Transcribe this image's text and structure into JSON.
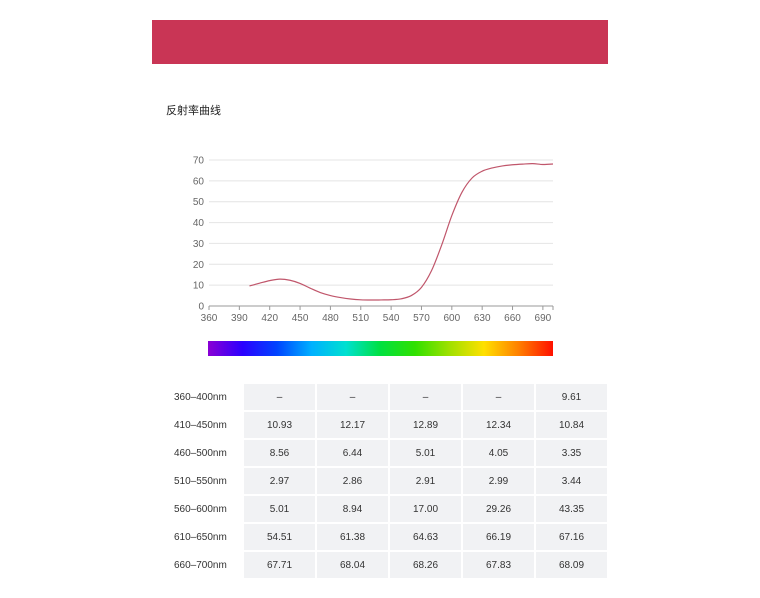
{
  "banner_color": "#c93555",
  "section_title": "反射率曲线",
  "chart_data": {
    "type": "line",
    "title": "",
    "xlabel": "",
    "ylabel": "",
    "xlim": [
      360,
      700
    ],
    "ylim": [
      0,
      70
    ],
    "x_ticks": [
      360,
      390,
      420,
      450,
      480,
      510,
      540,
      570,
      600,
      630,
      660,
      690
    ],
    "y_ticks": [
      0,
      10,
      20,
      30,
      40,
      50,
      60,
      70
    ],
    "grid": "horizontal",
    "line_color": "#c0566b",
    "series": [
      {
        "x": [
          400,
          410,
          420,
          430,
          440,
          450,
          460,
          470,
          480,
          490,
          500,
          510,
          520,
          530,
          540,
          550,
          560,
          570,
          580,
          590,
          600,
          610,
          620,
          630,
          640,
          650,
          660,
          670,
          680,
          690,
          700
        ],
        "values": [
          9.61,
          10.93,
          12.17,
          12.89,
          12.34,
          10.84,
          8.56,
          6.44,
          5.01,
          4.05,
          3.35,
          2.97,
          2.86,
          2.91,
          2.99,
          3.44,
          5.01,
          8.94,
          17.0,
          29.26,
          43.35,
          54.51,
          61.38,
          64.63,
          66.19,
          67.16,
          67.71,
          68.04,
          68.26,
          67.83,
          68.09
        ]
      }
    ]
  },
  "spectrum_stops": [
    "#8a00d4",
    "#2b00ff",
    "#0044ff",
    "#00b0ff",
    "#00e0d0",
    "#00e040",
    "#30e000",
    "#a0e000",
    "#ffe000",
    "#ff8000",
    "#ff1000"
  ],
  "table": {
    "rows": [
      {
        "label": "360–400nm",
        "values": [
          "–",
          "–",
          "–",
          "–",
          "9.61"
        ]
      },
      {
        "label": "410–450nm",
        "values": [
          "10.93",
          "12.17",
          "12.89",
          "12.34",
          "10.84"
        ]
      },
      {
        "label": "460–500nm",
        "values": [
          "8.56",
          "6.44",
          "5.01",
          "4.05",
          "3.35"
        ]
      },
      {
        "label": "510–550nm",
        "values": [
          "2.97",
          "2.86",
          "2.91",
          "2.99",
          "3.44"
        ]
      },
      {
        "label": "560–600nm",
        "values": [
          "5.01",
          "8.94",
          "17.00",
          "29.26",
          "43.35"
        ]
      },
      {
        "label": "610–650nm",
        "values": [
          "54.51",
          "61.38",
          "64.63",
          "66.19",
          "67.16"
        ]
      },
      {
        "label": "660–700nm",
        "values": [
          "67.71",
          "68.04",
          "68.26",
          "67.83",
          "68.09"
        ]
      }
    ]
  }
}
